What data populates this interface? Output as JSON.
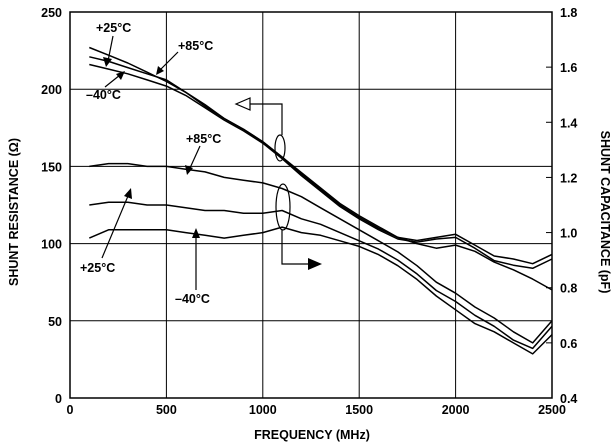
{
  "chart_data": {
    "type": "line",
    "title": "",
    "xlabel": "FREQUENCY (MHz)",
    "ylabel_left": "SHUNT RESISTANCE (Ω)",
    "ylabel_right": "SHUNT CAPACITANCE (pF)",
    "xlim": [
      0,
      2500
    ],
    "ylim_left": [
      0,
      250
    ],
    "ylim_right": [
      0.4,
      1.8
    ],
    "grid": true,
    "x_ticks": [
      "0",
      "500",
      "1000",
      "1500",
      "2000",
      "2500"
    ],
    "y_left_ticks": [
      "0",
      "50",
      "100",
      "150",
      "200",
      "250"
    ],
    "y_right_ticks": [
      "0.4",
      "0.6",
      "0.8",
      "1.0",
      "1.2",
      "1.4",
      "1.6",
      "1.8"
    ],
    "series": [
      {
        "name": "+25°C",
        "axis": "left",
        "quantity": "resistance",
        "x": [
          100,
          200,
          300,
          400,
          500,
          600,
          700,
          800,
          900,
          1000,
          1100,
          1200,
          1300,
          1400,
          1500,
          1600,
          1700,
          1800,
          1900,
          2000,
          2100,
          2200,
          2300,
          2400,
          2500
        ],
        "y": [
          227,
          222,
          217,
          211,
          205,
          198,
          190,
          181,
          174,
          166,
          156,
          146,
          136,
          126,
          118,
          111,
          104,
          100,
          97,
          99,
          95,
          88,
          83,
          77,
          70
        ]
      },
      {
        "name": "+85°C",
        "axis": "left",
        "quantity": "resistance",
        "x": [
          100,
          200,
          300,
          400,
          500,
          600,
          700,
          800,
          900,
          1000,
          1100,
          1200,
          1300,
          1400,
          1500,
          1600,
          1700,
          1800,
          1900,
          2000,
          2100,
          2200,
          2300,
          2400,
          2500
        ],
        "y": [
          221,
          218,
          214,
          210,
          206,
          198,
          189,
          181,
          174,
          166,
          156,
          145,
          135,
          125,
          117,
          110,
          104,
          102,
          104,
          106,
          99,
          92,
          90,
          87,
          93
        ]
      },
      {
        "name": "-40°C",
        "axis": "left",
        "quantity": "resistance",
        "x": [
          100,
          200,
          300,
          400,
          500,
          600,
          700,
          800,
          900,
          1000,
          1100,
          1200,
          1300,
          1400,
          1500,
          1600,
          1700,
          1800,
          1900,
          2000,
          2100,
          2200,
          2300,
          2400,
          2500
        ],
        "y": [
          216,
          213,
          210,
          206,
          202,
          196,
          188,
          180,
          173,
          165,
          155,
          144,
          134,
          124,
          116,
          109,
          103,
          101,
          103,
          104,
          97,
          89,
          86,
          84,
          90
        ]
      },
      {
        "name": "+85°C",
        "axis": "right",
        "quantity": "capacitance",
        "x": [
          100,
          200,
          300,
          400,
          500,
          600,
          700,
          800,
          900,
          1000,
          1100,
          1200,
          1300,
          1400,
          1500,
          1600,
          1700,
          1800,
          1900,
          2000,
          2100,
          2200,
          2300,
          2400,
          2500
        ],
        "y": [
          1.24,
          1.25,
          1.25,
          1.24,
          1.24,
          1.23,
          1.22,
          1.2,
          1.19,
          1.18,
          1.16,
          1.13,
          1.09,
          1.05,
          1.01,
          0.97,
          0.93,
          0.88,
          0.82,
          0.78,
          0.73,
          0.69,
          0.64,
          0.6,
          0.68
        ]
      },
      {
        "name": "+25°C",
        "axis": "right",
        "quantity": "capacitance",
        "x": [
          100,
          200,
          300,
          400,
          500,
          600,
          700,
          800,
          900,
          1000,
          1100,
          1200,
          1300,
          1400,
          1500,
          1600,
          1700,
          1800,
          1900,
          2000,
          2100,
          2200,
          2300,
          2400,
          2500
        ],
        "y": [
          1.1,
          1.11,
          1.11,
          1.1,
          1.1,
          1.09,
          1.08,
          1.08,
          1.07,
          1.07,
          1.08,
          1.05,
          1.03,
          1.0,
          0.97,
          0.94,
          0.9,
          0.85,
          0.79,
          0.75,
          0.7,
          0.66,
          0.61,
          0.58,
          0.66
        ]
      },
      {
        "name": "-40°C",
        "axis": "right",
        "quantity": "capacitance",
        "x": [
          100,
          200,
          300,
          400,
          500,
          600,
          700,
          800,
          900,
          1000,
          1100,
          1200,
          1300,
          1400,
          1500,
          1600,
          1700,
          1800,
          1900,
          2000,
          2100,
          2200,
          2300,
          2400,
          2500
        ],
        "y": [
          0.98,
          1.01,
          1.01,
          1.01,
          1.01,
          1.0,
          0.99,
          0.98,
          0.99,
          1.0,
          1.02,
          1.0,
          0.99,
          0.97,
          0.95,
          0.92,
          0.88,
          0.83,
          0.77,
          0.72,
          0.67,
          0.64,
          0.6,
          0.56,
          0.63
        ]
      }
    ],
    "annotations": [
      {
        "text": "+25°C"
      },
      {
        "text": "+85°C"
      },
      {
        "text": "–40°C"
      },
      {
        "text": "+85°C"
      },
      {
        "text": "+25°C"
      },
      {
        "text": "–40°C"
      }
    ]
  }
}
